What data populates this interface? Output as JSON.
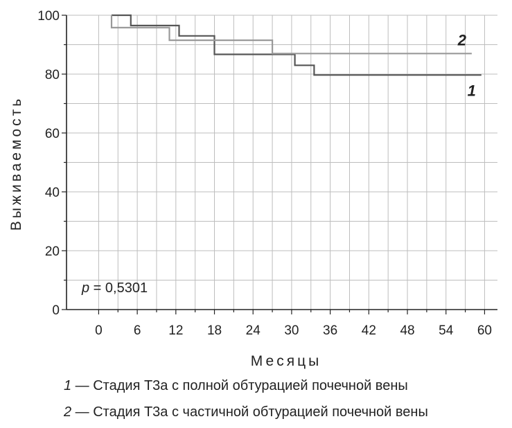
{
  "chart_data": {
    "type": "line",
    "step": true,
    "xlabel": "Месяцы",
    "ylabel": "Выживаемость",
    "xlim": [
      -5,
      62
    ],
    "ylim": [
      0,
      100
    ],
    "xticks": [
      0,
      6,
      12,
      18,
      24,
      30,
      36,
      42,
      48,
      54,
      60
    ],
    "yticks": [
      0,
      20,
      40,
      60,
      80,
      100
    ],
    "grid": true,
    "annotation": {
      "italic": "p",
      "text": " = 0,5301"
    },
    "series": [
      {
        "name": "1",
        "color": "#555555",
        "points": [
          [
            2,
            100
          ],
          [
            5,
            100
          ],
          [
            5,
            96.5
          ],
          [
            12.5,
            96.5
          ],
          [
            12.5,
            93
          ],
          [
            18,
            93
          ],
          [
            18,
            86.7
          ],
          [
            30.5,
            86.7
          ],
          [
            30.5,
            83
          ],
          [
            33.5,
            83
          ],
          [
            33.5,
            79.7
          ],
          [
            59.5,
            79.7
          ]
        ]
      },
      {
        "name": "2",
        "color": "#999999",
        "points": [
          [
            2,
            100
          ],
          [
            2,
            95.8
          ],
          [
            11,
            95.8
          ],
          [
            11,
            91.5
          ],
          [
            27,
            91.5
          ],
          [
            27,
            87
          ],
          [
            58,
            87
          ]
        ]
      }
    ],
    "legend": [
      {
        "num": "1",
        "text": " — Стадия Т3а с полной обтурацией почечной вены"
      },
      {
        "num": "2",
        "text": " — Стадия Т3а с частичной обтурацией почечной вены"
      }
    ]
  }
}
